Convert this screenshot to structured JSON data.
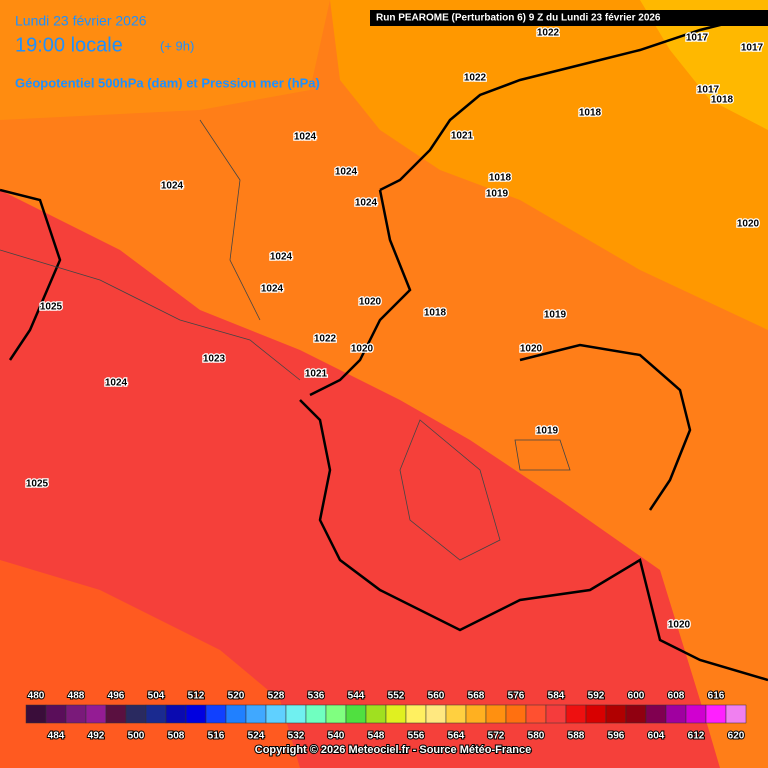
{
  "header": {
    "date": "Lundi 23 février 2026",
    "time": "19:00 locale",
    "offset": "(+ 9h)",
    "subtitle": "Géopotentiel 500hPa (dam) et Pression mer (hPa)",
    "run": "Run PEAROME (Perturbation 6) 9 Z du Lundi 23 février 2026"
  },
  "isobars": [
    1022,
    1017,
    1017,
    1022,
    1017,
    1018,
    1018,
    1024,
    1021,
    1024,
    1024,
    1018,
    1019,
    1024,
    1020,
    1024,
    1024,
    1020,
    1025,
    1018,
    1019,
    1022,
    1020,
    1020,
    1023,
    1021,
    1024,
    1019,
    1025,
    1020
  ],
  "scale": {
    "values": [
      480,
      484,
      488,
      492,
      496,
      500,
      504,
      508,
      512,
      516,
      520,
      524,
      528,
      532,
      536,
      540,
      544,
      548,
      552,
      556,
      560,
      564,
      568,
      572,
      576,
      580,
      584,
      588,
      592,
      596,
      600,
      604,
      608,
      612,
      616,
      620
    ],
    "colors": [
      "#3a0d3a",
      "#5a0e5a",
      "#7a1a7a",
      "#941c94",
      "#5a1040",
      "#2a2a60",
      "#1a2a90",
      "#0a0ab0",
      "#0000e0",
      "#1040ff",
      "#2080ff",
      "#40a8ff",
      "#60d0ff",
      "#70f0f0",
      "#70ffc0",
      "#80ff80",
      "#50e040",
      "#a0e020",
      "#e0f020",
      "#fff060",
      "#ffe880",
      "#ffd040",
      "#ffb020",
      "#ff9010",
      "#ff7010",
      "#ff5030",
      "#f53c3c",
      "#ee1010",
      "#d80000",
      "#b00000",
      "#900010",
      "#800050",
      "#a000a0",
      "#d000d0",
      "#ff20ff",
      "#f080f0"
    ]
  },
  "footer": "Copyright © 2026 Meteociel.fr - Source Météo-France"
}
